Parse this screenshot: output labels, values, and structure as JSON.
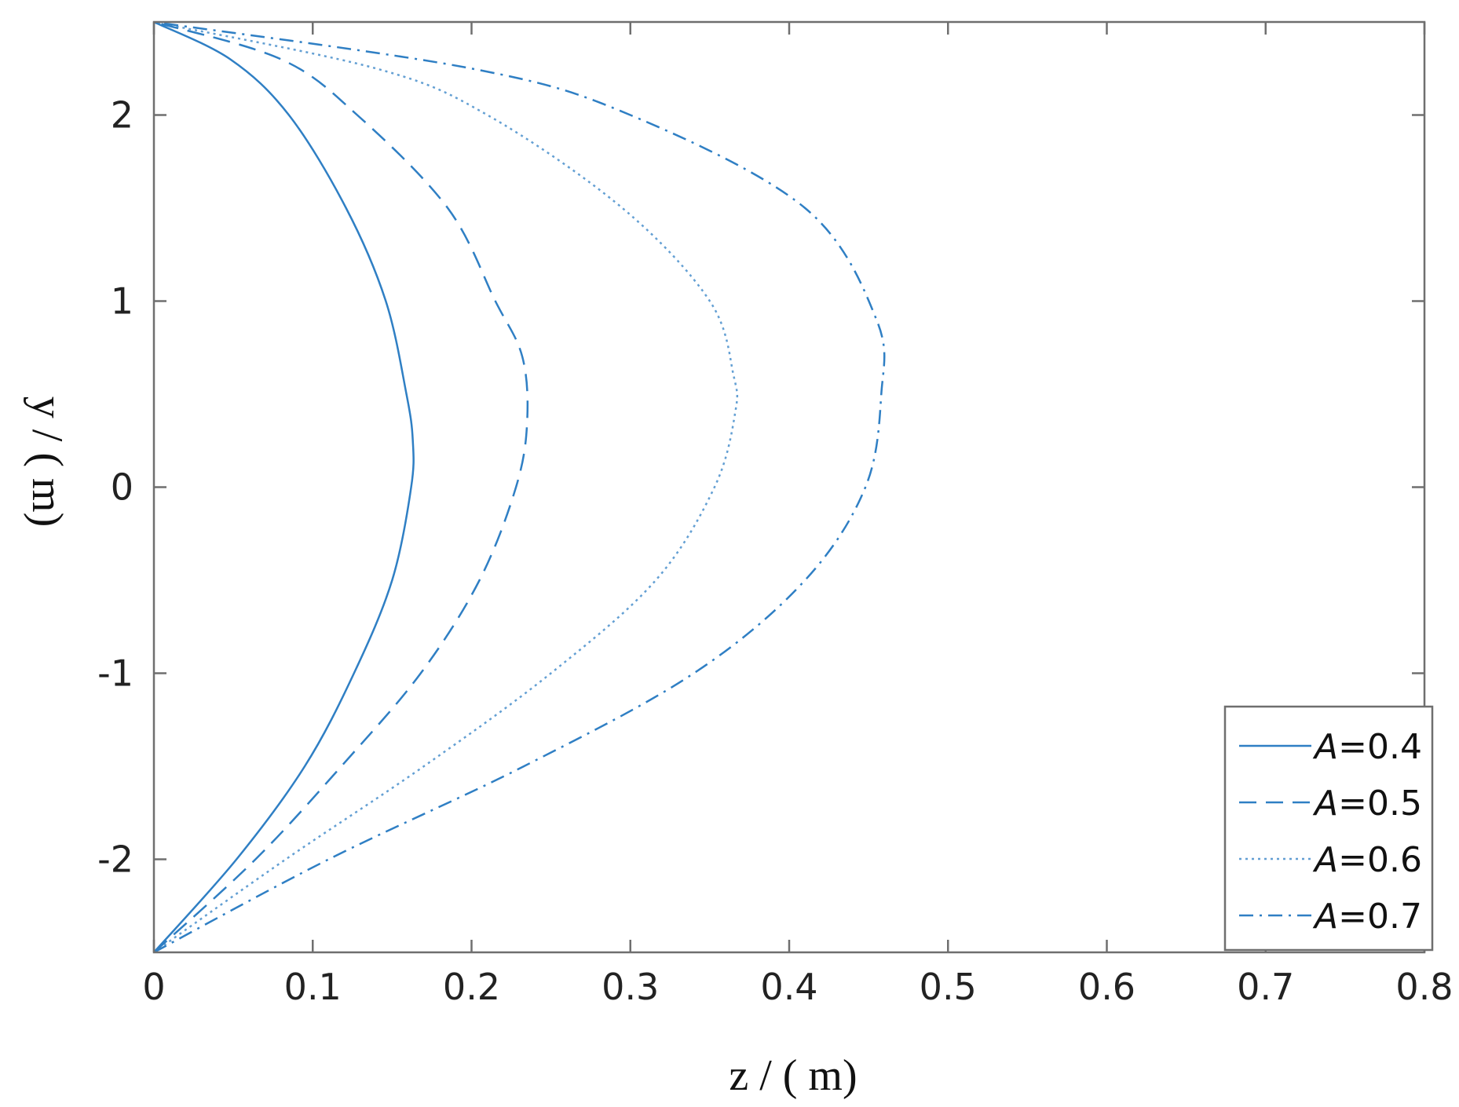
{
  "chart_data": {
    "type": "line",
    "title": "",
    "xlabel": "z / ( m)",
    "ylabel": "y / ( m)",
    "xlim": [
      0,
      0.8
    ],
    "ylim": [
      -2.5,
      2.5
    ],
    "xticks": [
      "0",
      "0.1",
      "0.2",
      "0.3",
      "0.4",
      "0.5",
      "0.6",
      "0.7",
      "0.8"
    ],
    "yticks": [
      "-2",
      "-1",
      "0",
      "1",
      "2"
    ],
    "grid": false,
    "legend_position": "bottom-right",
    "color": "#2f7fc4",
    "series": [
      {
        "name": "A=0.4",
        "legend_var": "A",
        "legend_val": "=0.4",
        "line_style": "solid",
        "points": [
          [
            0,
            -2.5
          ],
          [
            0.052,
            -2.0
          ],
          [
            0.095,
            -1.5
          ],
          [
            0.126,
            -1.0
          ],
          [
            0.15,
            -0.5
          ],
          [
            0.162,
            0.0
          ],
          [
            0.163,
            0.25
          ],
          [
            0.159,
            0.5
          ],
          [
            0.146,
            1.0
          ],
          [
            0.121,
            1.5
          ],
          [
            0.085,
            2.0
          ],
          [
            0.048,
            2.3
          ],
          [
            0,
            2.5
          ]
        ]
      },
      {
        "name": "A=0.5",
        "legend_var": "A",
        "legend_val": "=0.5",
        "line_style": "dashed",
        "points": [
          [
            0,
            -2.5
          ],
          [
            0.064,
            -2.0
          ],
          [
            0.118,
            -1.5
          ],
          [
            0.168,
            -1.0
          ],
          [
            0.205,
            -0.5
          ],
          [
            0.228,
            0.0
          ],
          [
            0.235,
            0.35
          ],
          [
            0.232,
            0.7
          ],
          [
            0.215,
            1.0
          ],
          [
            0.185,
            1.5
          ],
          [
            0.128,
            2.0
          ],
          [
            0.08,
            2.3
          ],
          [
            0,
            2.5
          ]
        ]
      },
      {
        "name": "A=0.6",
        "legend_var": "A",
        "legend_val": "=0.6",
        "line_style": "dotted",
        "points": [
          [
            0,
            -2.5
          ],
          [
            0.083,
            -2.0
          ],
          [
            0.17,
            -1.5
          ],
          [
            0.25,
            -1.0
          ],
          [
            0.316,
            -0.5
          ],
          [
            0.353,
            0.0
          ],
          [
            0.366,
            0.4
          ],
          [
            0.365,
            0.6
          ],
          [
            0.35,
            1.0
          ],
          [
            0.295,
            1.5
          ],
          [
            0.21,
            2.0
          ],
          [
            0.14,
            2.25
          ],
          [
            0,
            2.5
          ]
        ]
      },
      {
        "name": "A=0.7",
        "legend_var": "A",
        "legend_val": "=0.7",
        "line_style": "dashdot",
        "points": [
          [
            0,
            -2.5
          ],
          [
            0.11,
            -2.0
          ],
          [
            0.233,
            -1.5
          ],
          [
            0.34,
            -1.0
          ],
          [
            0.41,
            -0.5
          ],
          [
            0.448,
            0.0
          ],
          [
            0.458,
            0.5
          ],
          [
            0.455,
            0.9
          ],
          [
            0.41,
            1.5
          ],
          [
            0.3,
            2.0
          ],
          [
            0.2,
            2.25
          ],
          [
            0,
            2.5
          ]
        ]
      }
    ]
  }
}
